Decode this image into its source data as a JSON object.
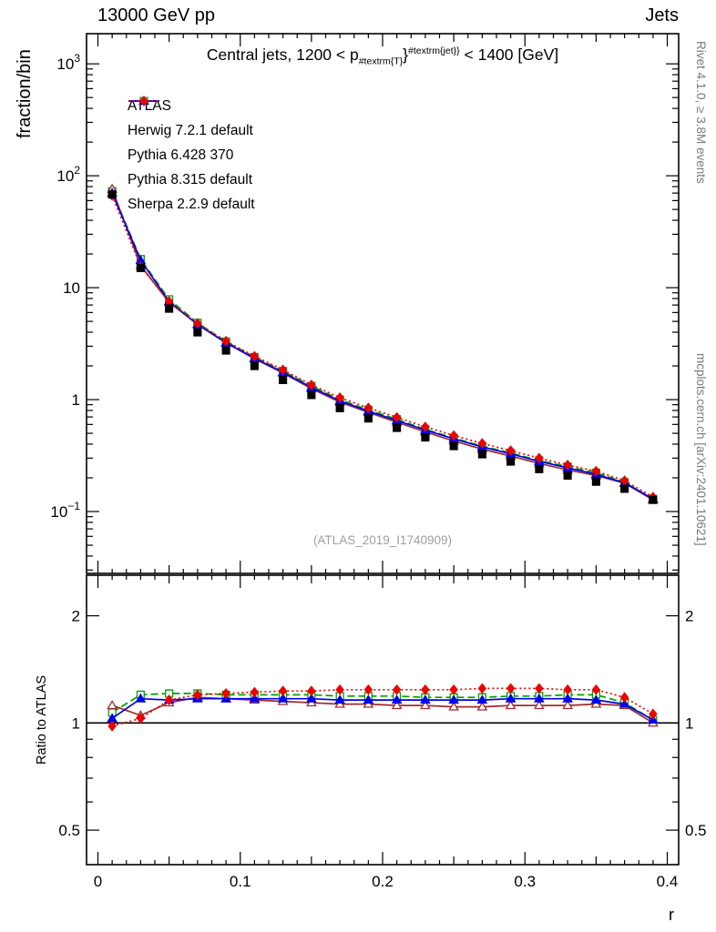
{
  "header": {
    "left": "13000 GeV pp",
    "right": "Jets"
  },
  "title": {
    "pre": "Central jets, 1200 < p",
    "sub": "#textrm{T}",
    "mid": "}",
    "sup": "#textrm{jet}}",
    "post": " < 1400 [GeV]"
  },
  "watermark": {
    "text": "(ATLAS_2019_I1740909)"
  },
  "side": {
    "top": "Rivet 4.1.0, ≥ 3.8M events",
    "bottom": "mcplots.cern.ch [arXiv:2401.10621]"
  },
  "chart_data": {
    "type": "line",
    "xlabel": "r",
    "ylabel": "fraction/bin",
    "ratio_ylabel": "Ratio to ATLAS",
    "xlim": [
      -0.008,
      0.408
    ],
    "ylim_main": [
      0.028,
      1860
    ],
    "ylim_ratio": [
      0.4,
      2.6
    ],
    "log_y_main": true,
    "log_y_ratio": true,
    "bin_width": 0.02,
    "x": [
      0.01,
      0.03,
      0.05,
      0.07,
      0.09,
      0.11,
      0.13,
      0.15,
      0.17,
      0.19,
      0.21,
      0.23,
      0.25,
      0.27,
      0.29,
      0.31,
      0.33,
      0.35,
      0.37,
      0.39
    ],
    "x_ticks": [
      {
        "v": 0,
        "label": "0"
      },
      {
        "v": 0.1,
        "label": "0.1"
      },
      {
        "v": 0.2,
        "label": "0.2"
      },
      {
        "v": 0.3,
        "label": "0.3"
      },
      {
        "v": 0.4,
        "label": "0.4"
      }
    ],
    "y_ticks_main": [
      {
        "v": 0.1,
        "base": "10",
        "exp": "−1"
      },
      {
        "v": 1,
        "base": "1"
      },
      {
        "v": 10,
        "base": "10"
      },
      {
        "v": 100,
        "base": "10",
        "exp": "2"
      },
      {
        "v": 1000,
        "base": "10",
        "exp": "3"
      }
    ],
    "y_ticks_ratio": [
      {
        "v": 0.5,
        "label": "0.5"
      },
      {
        "v": 1,
        "label": "1"
      },
      {
        "v": 2,
        "label": "2"
      }
    ],
    "series": [
      {
        "name": "ATLAS",
        "color": "#000000",
        "marker": "square-filled",
        "line": "none",
        "role": "reference-data",
        "values": [
          68,
          15,
          6.5,
          4.0,
          2.75,
          2.0,
          1.5,
          1.1,
          0.84,
          0.68,
          0.56,
          0.46,
          0.385,
          0.325,
          0.28,
          0.24,
          0.21,
          0.185,
          0.16,
          0.127
        ]
      },
      {
        "name": "Herwig 7.2.1 default",
        "color": "#00a000",
        "marker": "square-open",
        "line": "dashed",
        "ratio_to_data": [
          1.07,
          1.2,
          1.21,
          1.21,
          1.2,
          1.2,
          1.2,
          1.2,
          1.19,
          1.19,
          1.19,
          1.18,
          1.18,
          1.18,
          1.19,
          1.19,
          1.2,
          1.2,
          1.14,
          1.02
        ]
      },
      {
        "name": "Pythia 6.428 370",
        "color": "#a02c2c",
        "marker": "triangle-open",
        "line": "solid",
        "ratio_to_data": [
          1.12,
          1.05,
          1.14,
          1.18,
          1.17,
          1.16,
          1.15,
          1.14,
          1.13,
          1.13,
          1.12,
          1.12,
          1.11,
          1.11,
          1.12,
          1.12,
          1.12,
          1.13,
          1.12,
          1.0
        ]
      },
      {
        "name": "Pythia 8.315 default",
        "color": "#0000ee",
        "marker": "triangle-filled",
        "line": "solid",
        "ratio_to_data": [
          1.03,
          1.17,
          1.16,
          1.17,
          1.17,
          1.17,
          1.17,
          1.17,
          1.16,
          1.16,
          1.16,
          1.16,
          1.16,
          1.16,
          1.17,
          1.17,
          1.17,
          1.16,
          1.13,
          1.02
        ]
      },
      {
        "name": "Sherpa 2.2.9 default",
        "color": "#ee0000",
        "marker": "diamond-filled",
        "line": "dotted",
        "ratio_to_data": [
          0.98,
          1.03,
          1.16,
          1.2,
          1.21,
          1.22,
          1.23,
          1.23,
          1.24,
          1.24,
          1.24,
          1.24,
          1.24,
          1.25,
          1.25,
          1.25,
          1.24,
          1.24,
          1.18,
          1.06
        ]
      }
    ]
  }
}
